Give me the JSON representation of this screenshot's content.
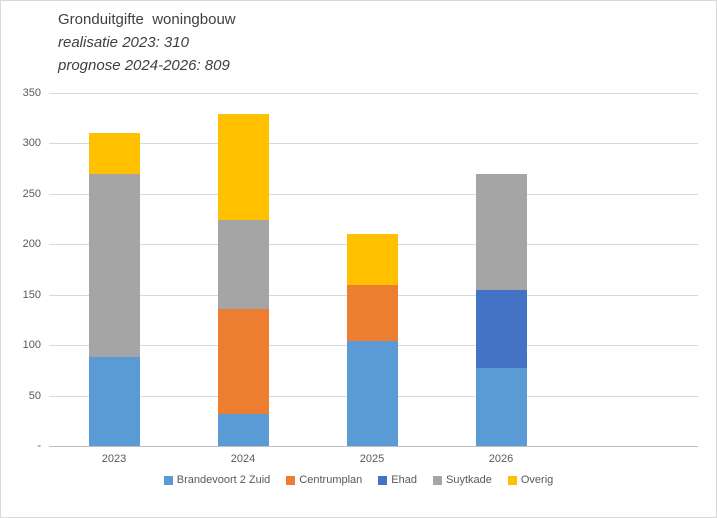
{
  "chart_data": {
    "type": "bar",
    "stacked": true,
    "title": "Gronduitgifte  woningbouw",
    "subtitle_lines": [
      "realisatie 2023: 310",
      "prognose 2024-2026: 809"
    ],
    "categories": [
      "2023",
      "2024",
      "2025",
      "2026"
    ],
    "series": [
      {
        "name": "Brandevoort 2 Zuid",
        "color": "#5B9BD5",
        "values": [
          88,
          32,
          104,
          77
        ]
      },
      {
        "name": "Centrumplan",
        "color": "#ED7D31",
        "values": [
          0,
          104,
          56,
          0
        ]
      },
      {
        "name": "Ehad",
        "color": "#4472C4",
        "values": [
          0,
          0,
          0,
          78
        ]
      },
      {
        "name": "Suytkade",
        "color": "#A5A5A5",
        "values": [
          182,
          88,
          0,
          115
        ]
      },
      {
        "name": "Overig",
        "color": "#FFC000",
        "values": [
          40,
          105,
          50,
          0
        ]
      }
    ],
    "category_totals": [
      310,
      329,
      210,
      270
    ],
    "ylim": [
      0,
      350
    ],
    "ytick_interval": 50,
    "ytick_labels": [
      "-",
      "50",
      "100",
      "150",
      "200",
      "250",
      "300",
      "350"
    ],
    "grid": true,
    "legend_position": "bottom",
    "colors": {
      "title_text": "#404040",
      "axis_text": "#595959",
      "gridline": "#d9d9d9",
      "axis_line": "#bfbfbf",
      "frame_border": "#d9d9d9",
      "background": "#ffffff"
    }
  }
}
